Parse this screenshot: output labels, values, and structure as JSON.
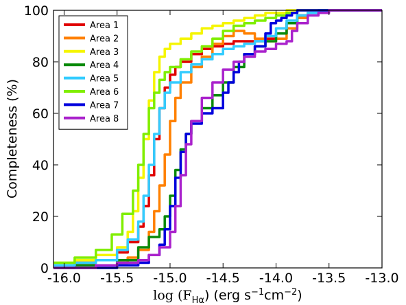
{
  "chart_data": {
    "type": "line",
    "xlabel": "log (F",
    "xlabel_sub": "Hα",
    "xlabel_tail": ") (erg s",
    "xlabel_sup1": "−1",
    "xlabel_mid": "cm",
    "xlabel_sup2": "−2",
    "xlabel_end": ")",
    "ylabel": "Completeness (%)",
    "xlim": [
      -16.1,
      -13.0
    ],
    "ylim": [
      0,
      100
    ],
    "x_ticks": [
      {
        "value": -16.0,
        "label": "-16.0"
      },
      {
        "value": -15.5,
        "label": "-15.5"
      },
      {
        "value": -15.0,
        "label": "-15.0"
      },
      {
        "value": -14.5,
        "label": "-14.5"
      },
      {
        "value": -14.0,
        "label": "-14.0"
      },
      {
        "value": -13.5,
        "label": "-13.5"
      },
      {
        "value": -13.0,
        "label": "-13.0"
      }
    ],
    "y_ticks": [
      {
        "value": 0,
        "label": "0"
      },
      {
        "value": 20,
        "label": "20"
      },
      {
        "value": 40,
        "label": "40"
      },
      {
        "value": 60,
        "label": "60"
      },
      {
        "value": 80,
        "label": "80"
      },
      {
        "value": 100,
        "label": "100"
      }
    ],
    "grid": false,
    "legend_position": "top-left",
    "series": [
      {
        "name": "Area 1",
        "color": "#e00000",
        "x": [
          -16.1,
          -15.9,
          -15.7,
          -15.5,
          -15.4,
          -15.3,
          -15.25,
          -15.2,
          -15.15,
          -15.1,
          -15.05,
          -15.0,
          -14.95,
          -14.9,
          -14.8,
          -14.7,
          -14.6,
          -14.5,
          -14.4,
          -14.3,
          -14.2,
          -14.1,
          -14.0,
          -13.9,
          -13.8,
          -13.7,
          -13.6,
          -13.5,
          -13.0
        ],
        "y": [
          1,
          2,
          3,
          6,
          10,
          16,
          24,
          36,
          50,
          62,
          70,
          75,
          78,
          80,
          83,
          85,
          86,
          87,
          88,
          88,
          88,
          89,
          91,
          95,
          98,
          99,
          100,
          100,
          100
        ]
      },
      {
        "name": "Area 2",
        "color": "#ff8000",
        "x": [
          -16.1,
          -15.9,
          -15.7,
          -15.5,
          -15.4,
          -15.3,
          -15.2,
          -15.15,
          -15.1,
          -15.05,
          -15.0,
          -14.95,
          -14.9,
          -14.8,
          -14.7,
          -14.6,
          -14.5,
          -14.4,
          -14.3,
          -14.2,
          -14.1,
          -14.0,
          -13.9,
          -13.8,
          -13.7,
          -13.6,
          -13.5,
          -13.0
        ],
        "y": [
          0,
          1,
          1,
          2,
          4,
          7,
          14,
          22,
          32,
          44,
          57,
          66,
          72,
          78,
          82,
          87,
          90,
          92,
          91,
          89,
          88,
          89,
          93,
          97,
          99,
          100,
          100,
          100
        ]
      },
      {
        "name": "Area 3",
        "color": "#f5f500",
        "x": [
          -16.1,
          -15.9,
          -15.7,
          -15.5,
          -15.4,
          -15.35,
          -15.3,
          -15.25,
          -15.2,
          -15.15,
          -15.1,
          -15.05,
          -15.0,
          -14.9,
          -14.8,
          -14.7,
          -14.6,
          -14.5,
          -14.4,
          -14.3,
          -14.2,
          -14.1,
          -14.0,
          -13.9,
          -13.8,
          -13.7,
          -13.5,
          -13.0
        ],
        "y": [
          2,
          3,
          5,
          8,
          14,
          22,
          35,
          50,
          65,
          76,
          82,
          85,
          87,
          89,
          91,
          93,
          94,
          95,
          96,
          97,
          98,
          99,
          99,
          100,
          100,
          100,
          100,
          100
        ]
      },
      {
        "name": "Area 4",
        "color": "#0a8a0a",
        "x": [
          -16.1,
          -15.9,
          -15.7,
          -15.5,
          -15.3,
          -15.2,
          -15.1,
          -15.05,
          -15.0,
          -14.95,
          -14.9,
          -14.85,
          -14.8,
          -14.7,
          -14.6,
          -14.5,
          -14.4,
          -14.3,
          -14.2,
          -14.1,
          -14.0,
          -13.9,
          -13.8,
          -13.7,
          -13.6,
          -13.5,
          -13.0
        ],
        "y": [
          0,
          1,
          1,
          3,
          8,
          12,
          15,
          20,
          28,
          38,
          46,
          52,
          57,
          62,
          67,
          72,
          78,
          83,
          86,
          88,
          91,
          95,
          98,
          99,
          100,
          100,
          100
        ]
      },
      {
        "name": "Area 5",
        "color": "#33ccff",
        "x": [
          -16.1,
          -15.9,
          -15.7,
          -15.5,
          -15.4,
          -15.3,
          -15.25,
          -15.2,
          -15.15,
          -15.1,
          -15.05,
          -15.0,
          -14.9,
          -14.8,
          -14.7,
          -14.6,
          -14.5,
          -14.4,
          -14.3,
          -14.2,
          -14.1,
          -14.0,
          -13.9,
          -13.8,
          -13.7,
          -13.6,
          -13.5,
          -13.0
        ],
        "y": [
          1,
          2,
          3,
          7,
          11,
          18,
          28,
          40,
          52,
          62,
          68,
          72,
          76,
          79,
          81,
          83,
          85,
          86,
          87,
          88,
          90,
          93,
          96,
          98,
          99,
          100,
          100,
          100
        ]
      },
      {
        "name": "Area 6",
        "color": "#80ee00",
        "x": [
          -16.1,
          -15.9,
          -15.7,
          -15.55,
          -15.45,
          -15.35,
          -15.3,
          -15.25,
          -15.2,
          -15.15,
          -15.1,
          -15.05,
          -15.0,
          -14.9,
          -14.8,
          -14.7,
          -14.6,
          -14.5,
          -14.4,
          -14.3,
          -14.2,
          -14.1,
          -14.0,
          -13.9,
          -13.8,
          -13.7,
          -13.5,
          -13.0
        ],
        "y": [
          2,
          4,
          7,
          13,
          21,
          30,
          40,
          52,
          62,
          68,
          73,
          76,
          78,
          81,
          84,
          86,
          89,
          92,
          94,
          95,
          96,
          97,
          98,
          99,
          100,
          100,
          100,
          100
        ]
      },
      {
        "name": "Area 7",
        "color": "#0000dd",
        "x": [
          -16.1,
          -15.9,
          -15.7,
          -15.5,
          -15.3,
          -15.2,
          -15.1,
          -15.05,
          -15.0,
          -14.95,
          -14.9,
          -14.85,
          -14.8,
          -14.7,
          -14.6,
          -14.5,
          -14.45,
          -14.4,
          -14.35,
          -14.3,
          -14.2,
          -14.1,
          -14.05,
          -14.0,
          -13.95,
          -13.9,
          -13.85,
          -13.8,
          -13.5,
          -13.0
        ],
        "y": [
          0,
          0,
          0,
          1,
          2,
          5,
          9,
          15,
          24,
          35,
          45,
          52,
          56,
          60,
          62,
          68,
          72,
          76,
          80,
          83,
          86,
          91,
          95,
          96,
          97,
          98,
          99,
          100,
          100,
          100
        ]
      },
      {
        "name": "Area 8",
        "color": "#aa22cc",
        "x": [
          -16.1,
          -15.9,
          -15.7,
          -15.5,
          -15.3,
          -15.2,
          -15.1,
          -15.0,
          -14.95,
          -14.9,
          -14.85,
          -14.8,
          -14.7,
          -14.6,
          -14.5,
          -14.4,
          -14.3,
          -14.2,
          -14.1,
          -14.0,
          -13.9,
          -13.85,
          -13.8,
          -13.7,
          -13.6,
          -13.5,
          -13.0
        ],
        "y": [
          0,
          0,
          1,
          2,
          3,
          5,
          8,
          14,
          24,
          36,
          48,
          57,
          66,
          72,
          77,
          80,
          82,
          84,
          85,
          87,
          88,
          92,
          95,
          98,
          99,
          100,
          100
        ]
      }
    ]
  }
}
